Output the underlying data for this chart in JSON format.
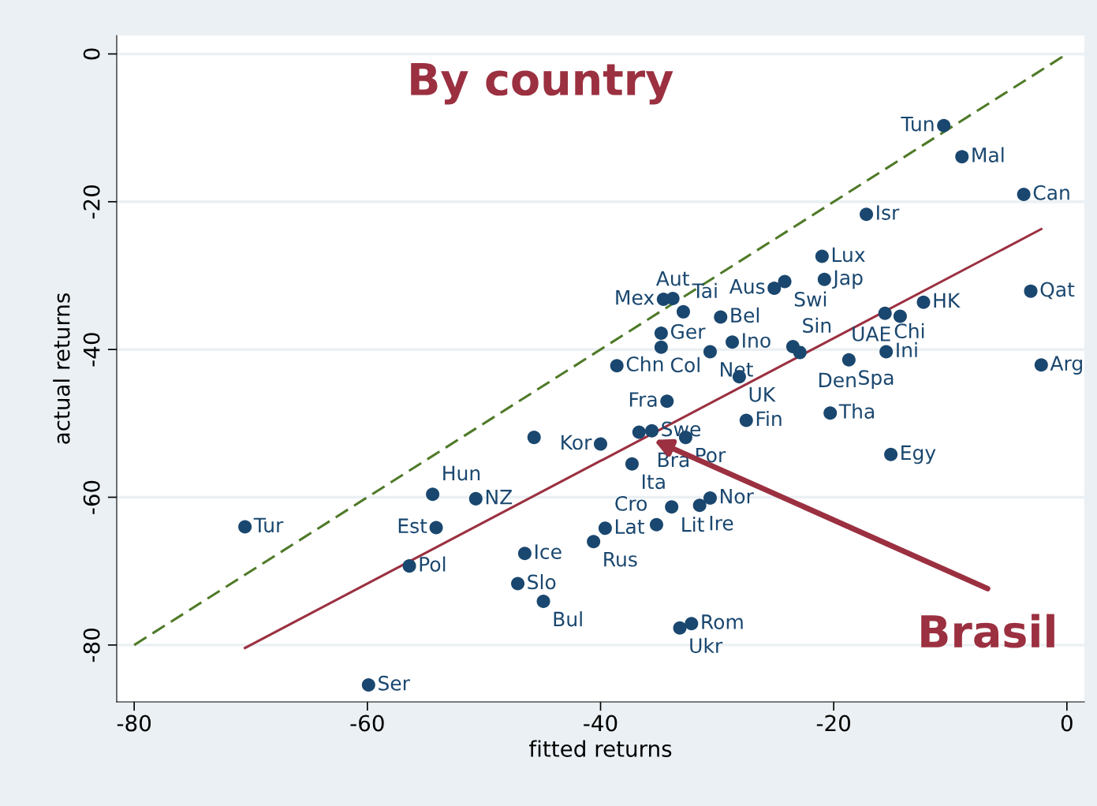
{
  "chart_data": {
    "type": "scatter",
    "title": "By country",
    "xlabel": "fitted returns",
    "ylabel": "actual returns",
    "xlim": [
      -81.5,
      1.5
    ],
    "ylim": [
      -87.7,
      2.5
    ],
    "xticks": [
      -80,
      -60,
      -40,
      -20,
      0
    ],
    "yticks": [
      0,
      -20,
      -40,
      -60,
      -80
    ],
    "grid": "y",
    "legend": false,
    "series": [
      {
        "type": "scatter",
        "marker": "circle",
        "color": "#1a476f",
        "x": [
          -10.56,
          -9.0,
          -3.7,
          -17.2,
          -21.0,
          -20.8,
          -24.2,
          -25.1,
          -3.1,
          -12.3,
          -15.6,
          -14.3,
          -34.6,
          -33.8,
          -32.9,
          -29.7,
          -34.8,
          -34.8,
          -28.7,
          -30.6,
          -23.5,
          -22.9,
          -18.7,
          -15.5,
          -2.2,
          -38.6,
          -28.1,
          -34.3,
          -20.3,
          -27.5,
          -36.7,
          -35.6,
          -32.7,
          -45.7,
          -40.0,
          -37.3,
          -15.1,
          -54.4,
          -50.7,
          -30.6,
          -33.9,
          -31.5,
          -70.5,
          -54.1,
          -39.6,
          -35.2,
          -40.6,
          -46.5,
          -56.4,
          -47.1,
          -44.9,
          -33.2,
          -32.2,
          -59.9
        ],
        "values": [
          -9.7,
          -13.9,
          -19.0,
          -21.7,
          -27.4,
          -30.5,
          -30.8,
          -31.7,
          -32.1,
          -33.6,
          -35.1,
          -35.5,
          -33.2,
          -33.1,
          -34.9,
          -35.6,
          -37.8,
          -39.7,
          -39.0,
          -40.3,
          -39.6,
          -40.4,
          -41.4,
          -40.3,
          -42.1,
          -42.2,
          -43.7,
          -47.0,
          -48.6,
          -49.6,
          -51.2,
          -51.0,
          -51.9,
          -51.9,
          -52.8,
          -55.5,
          -54.2,
          -59.6,
          -60.2,
          -60.1,
          -61.3,
          -61.1,
          -64.0,
          -64.1,
          -64.2,
          -63.7,
          -66.0,
          -67.6,
          -69.3,
          -71.7,
          -74.1,
          -77.7,
          -77.1,
          -85.4
        ]
      },
      {
        "type": "line",
        "color": "#9b3040",
        "line_style": "solid",
        "marker": "none",
        "x": [
          -70.5,
          -2.2
        ],
        "values": [
          -80.4,
          -23.7
        ]
      },
      {
        "type": "line",
        "color": "#4f7a28",
        "line_style": "dashed",
        "marker": "none",
        "x": [
          -80,
          0
        ],
        "values": [
          -80,
          0
        ]
      }
    ],
    "annotations": [
      {
        "text": "Tun",
        "x": -10.56,
        "y": -9.7
      },
      {
        "text": "Mal",
        "x": -9.0,
        "y": -13.9
      },
      {
        "text": "Can",
        "x": -3.7,
        "y": -19.0
      },
      {
        "text": "Isr",
        "x": -17.2,
        "y": -21.7
      },
      {
        "text": "Lux",
        "x": -21.0,
        "y": -27.4
      },
      {
        "text": "Jap",
        "x": -20.8,
        "y": -30.5
      },
      {
        "text": "Swi",
        "x": -24.2,
        "y": -30.8
      },
      {
        "text": "Aus",
        "x": -25.1,
        "y": -31.7
      },
      {
        "text": "Qat",
        "x": -3.1,
        "y": -32.1
      },
      {
        "text": "HK",
        "x": -12.3,
        "y": -33.6
      },
      {
        "text": "Chi",
        "x": -15.6,
        "y": -35.1
      },
      {
        "text": "UAE",
        "x": -14.3,
        "y": -35.5
      },
      {
        "text": "Mex",
        "x": -34.6,
        "y": -33.2
      },
      {
        "text": "Aut",
        "x": -33.8,
        "y": -33.1
      },
      {
        "text": "Tai",
        "x": -32.9,
        "y": -34.9
      },
      {
        "text": "Bel",
        "x": -29.7,
        "y": -35.6
      },
      {
        "text": "Ger",
        "x": -34.8,
        "y": -37.8
      },
      {
        "text": "Col",
        "x": -34.8,
        "y": -39.7
      },
      {
        "text": "Ino",
        "x": -28.7,
        "y": -39.0
      },
      {
        "text": "Net",
        "x": -30.6,
        "y": -40.3
      },
      {
        "text": "Sin",
        "x": -23.5,
        "y": -39.6
      },
      {
        "text": "Den",
        "x": -22.9,
        "y": -40.4
      },
      {
        "text": "Spa",
        "x": -18.7,
        "y": -41.4
      },
      {
        "text": "Ini",
        "x": -15.5,
        "y": -40.3
      },
      {
        "text": "Arg",
        "x": -2.2,
        "y": -42.1
      },
      {
        "text": "Chn",
        "x": -38.6,
        "y": -42.2
      },
      {
        "text": "UK",
        "x": -28.1,
        "y": -43.7
      },
      {
        "text": "Fra",
        "x": -34.3,
        "y": -47.0
      },
      {
        "text": "Tha",
        "x": -20.3,
        "y": -48.6
      },
      {
        "text": "Fin",
        "x": -27.5,
        "y": -49.6
      },
      {
        "text": "Bra",
        "x": -36.7,
        "y": -51.2
      },
      {
        "text": "Swe",
        "x": -35.6,
        "y": -51.0
      },
      {
        "text": "Por",
        "x": -32.7,
        "y": -51.9
      },
      {
        "text": "Kor",
        "x": -40.0,
        "y": -52.8
      },
      {
        "text": "Ita",
        "x": -37.3,
        "y": -55.5
      },
      {
        "text": "Egy",
        "x": -15.1,
        "y": -54.2
      },
      {
        "text": "Hun",
        "x": -54.4,
        "y": -59.6
      },
      {
        "text": "NZ",
        "x": -50.7,
        "y": -60.2
      },
      {
        "text": "Nor",
        "x": -30.6,
        "y": -60.1
      },
      {
        "text": "Lit",
        "x": -33.9,
        "y": -61.3
      },
      {
        "text": "Ire",
        "x": -31.5,
        "y": -61.1
      },
      {
        "text": "Tur",
        "x": -70.5,
        "y": -64.0
      },
      {
        "text": "Est",
        "x": -54.1,
        "y": -64.1
      },
      {
        "text": "Lat",
        "x": -39.6,
        "y": -64.2
      },
      {
        "text": "Cro",
        "x": -35.2,
        "y": -63.7
      },
      {
        "text": "Rus",
        "x": -40.6,
        "y": -66.0
      },
      {
        "text": "Ice",
        "x": -46.5,
        "y": -67.6
      },
      {
        "text": "Pol",
        "x": -56.4,
        "y": -69.3
      },
      {
        "text": "Slo",
        "x": -47.1,
        "y": -71.7
      },
      {
        "text": "Bul",
        "x": -44.9,
        "y": -74.1
      },
      {
        "text": "Ukr",
        "x": -33.2,
        "y": -77.7
      },
      {
        "text": "Rom",
        "x": -32.2,
        "y": -77.1
      },
      {
        "text": "Ser",
        "x": -59.9,
        "y": -85.4
      },
      "Brasil"
    ]
  }
}
